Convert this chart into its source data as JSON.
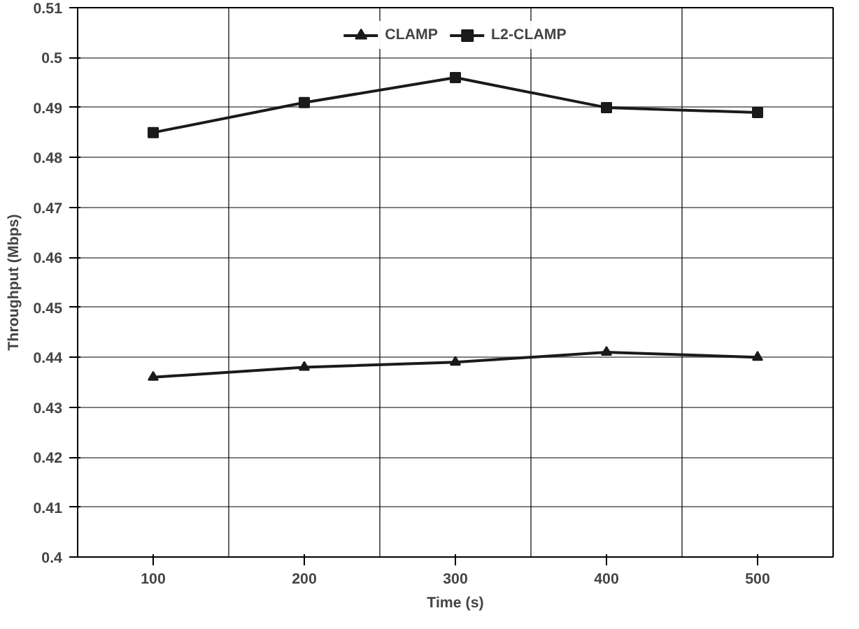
{
  "chart_data": {
    "type": "line",
    "xlabel": "Time (s)",
    "ylabel": "Throughput (Mbps)",
    "categories": [
      "100",
      "200",
      "300",
      "400",
      "500"
    ],
    "series": [
      {
        "name": "CLAMP",
        "color": "#1a1a1a",
        "marker": "triangle",
        "values": [
          0.436,
          0.438,
          0.439,
          0.441,
          0.44
        ]
      },
      {
        "name": "L2-CLAMP",
        "color": "#1a1a1a",
        "marker": "square",
        "values": [
          0.485,
          0.491,
          0.496,
          0.49,
          0.489
        ]
      }
    ],
    "ylim": [
      0.4,
      0.51
    ],
    "yticks": [
      0.4,
      0.41,
      0.42,
      0.43,
      0.44,
      0.45,
      0.46,
      0.47,
      0.48,
      0.49,
      0.5,
      0.51
    ],
    "grid": true,
    "legend": "top",
    "line_style": "solid"
  }
}
